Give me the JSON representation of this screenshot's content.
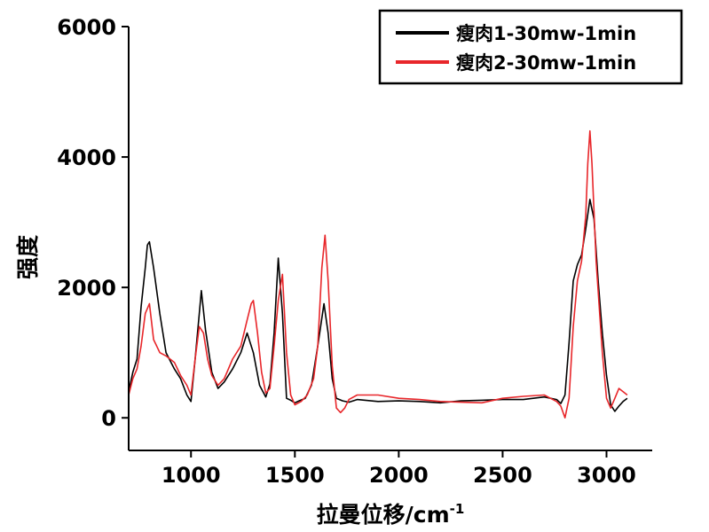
{
  "chart_data": {
    "type": "line",
    "title": "",
    "xlabel": "拉曼位移/cm",
    "xlabel_superscript": "-1",
    "ylabel": "强度",
    "xlim": [
      700,
      3220
    ],
    "ylim": [
      -500,
      6000
    ],
    "xticks": [
      1000,
      1500,
      2000,
      2500,
      3000
    ],
    "yticks": [
      0,
      2000,
      4000,
      6000
    ],
    "grid": false,
    "legend": {
      "position": "top-right"
    },
    "series": [
      {
        "name": "瘦肉1-30mw-1min",
        "color": "#000000",
        "x": [
          700,
          720,
          740,
          760,
          780,
          790,
          800,
          820,
          850,
          880,
          920,
          950,
          980,
          1000,
          1020,
          1040,
          1050,
          1070,
          1100,
          1130,
          1160,
          1200,
          1240,
          1270,
          1300,
          1330,
          1360,
          1380,
          1400,
          1420,
          1440,
          1460,
          1480,
          1500,
          1520,
          1550,
          1580,
          1610,
          1640,
          1660,
          1680,
          1700,
          1730,
          1760,
          1800,
          1900,
          2000,
          2100,
          2200,
          2300,
          2400,
          2500,
          2600,
          2700,
          2760,
          2780,
          2800,
          2820,
          2840,
          2860,
          2880,
          2900,
          2920,
          2940,
          2960,
          2980,
          3000,
          3020,
          3040,
          3060,
          3080,
          3100
        ],
        "y": [
          400,
          700,
          900,
          1700,
          2300,
          2650,
          2700,
          2300,
          1600,
          1000,
          750,
          600,
          350,
          250,
          900,
          1600,
          1950,
          1350,
          700,
          450,
          550,
          750,
          1000,
          1300,
          1000,
          500,
          320,
          520,
          1300,
          2450,
          1600,
          300,
          270,
          230,
          260,
          300,
          500,
          1100,
          1750,
          1300,
          600,
          300,
          260,
          240,
          280,
          250,
          260,
          250,
          230,
          260,
          270,
          280,
          280,
          320,
          280,
          220,
          350,
          1150,
          2100,
          2350,
          2500,
          2900,
          3350,
          3050,
          2100,
          1300,
          650,
          200,
          100,
          180,
          250,
          300
        ]
      },
      {
        "name": "瘦肉2-30mw-1min",
        "color": "#e8262a",
        "x": [
          700,
          720,
          740,
          760,
          780,
          800,
          820,
          850,
          880,
          920,
          950,
          980,
          1000,
          1020,
          1040,
          1060,
          1080,
          1100,
          1130,
          1160,
          1200,
          1240,
          1270,
          1290,
          1300,
          1320,
          1340,
          1360,
          1380,
          1400,
          1420,
          1440,
          1460,
          1480,
          1500,
          1530,
          1560,
          1590,
          1610,
          1630,
          1645,
          1660,
          1680,
          1700,
          1720,
          1740,
          1760,
          1800,
          1900,
          2000,
          2100,
          2200,
          2300,
          2400,
          2500,
          2600,
          2700,
          2760,
          2780,
          2800,
          2820,
          2840,
          2860,
          2880,
          2900,
          2910,
          2920,
          2930,
          2950,
          2980,
          3000,
          3020,
          3040,
          3060,
          3080,
          3100
        ],
        "y": [
          350,
          600,
          750,
          1100,
          1600,
          1750,
          1200,
          1000,
          950,
          850,
          650,
          500,
          350,
          900,
          1400,
          1300,
          900,
          650,
          500,
          600,
          900,
          1100,
          1500,
          1750,
          1800,
          1300,
          700,
          380,
          450,
          1100,
          1800,
          2200,
          1000,
          350,
          200,
          250,
          350,
          600,
          1100,
          2300,
          2800,
          2100,
          800,
          150,
          80,
          150,
          280,
          350,
          350,
          300,
          280,
          250,
          240,
          230,
          300,
          330,
          350,
          250,
          180,
          0,
          300,
          1400,
          2100,
          2400,
          3100,
          3900,
          4400,
          3900,
          2400,
          1000,
          300,
          150,
          300,
          450,
          400,
          350
        ]
      }
    ]
  }
}
